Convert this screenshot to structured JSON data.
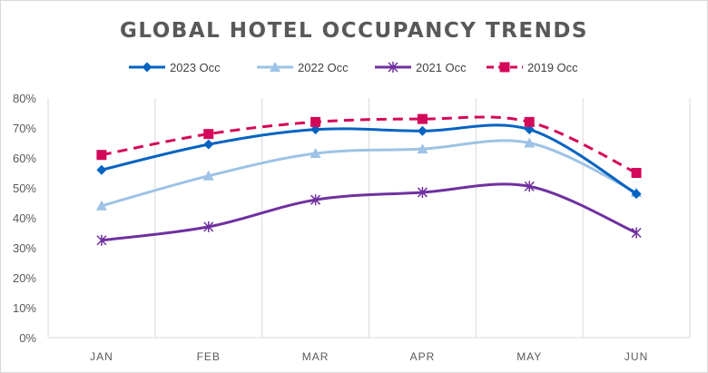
{
  "chart_data": {
    "type": "line",
    "title": "GLOBAL HOTEL OCCUPANCY TRENDS",
    "categories": [
      "JAN",
      "FEB",
      "MAR",
      "APR",
      "MAY",
      "JUN"
    ],
    "ylim": [
      0,
      80
    ],
    "yticks": [
      "0%",
      "10%",
      "20%",
      "30%",
      "40%",
      "50%",
      "60%",
      "70%",
      "80%"
    ],
    "grid": "vertical",
    "legend": "top",
    "smooth": true,
    "series": [
      {
        "name": "2023 Occ",
        "color": "#0563c1",
        "marker": "diamond",
        "dash": false,
        "values": [
          56,
          64.5,
          69.5,
          69,
          69.5,
          48
        ]
      },
      {
        "name": "2022 Occ",
        "color": "#9dc3e6",
        "marker": "triangle",
        "dash": false,
        "values": [
          44,
          54,
          61.5,
          63,
          65,
          48.5
        ]
      },
      {
        "name": "2021 Occ",
        "color": "#7030a0",
        "marker": "star",
        "dash": false,
        "values": [
          32.5,
          37,
          46,
          48.5,
          50.5,
          35
        ]
      },
      {
        "name": "2019 Occ",
        "color": "#d4085a",
        "marker": "square",
        "dash": true,
        "values": [
          61,
          68,
          72,
          73,
          72,
          55
        ]
      }
    ]
  }
}
